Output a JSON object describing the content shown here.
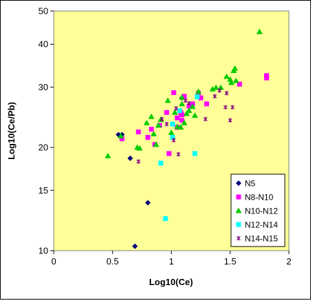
{
  "chart_data": {
    "type": "scatter",
    "xlabel": "Log10(Ce)",
    "ylabel": "Log10(Ce/Pb)",
    "xlim": [
      0,
      2
    ],
    "ylim": [
      10,
      50
    ],
    "yscale": "log",
    "x_ticks": [
      "0",
      "0.5",
      "1",
      "1.5",
      "2"
    ],
    "y_ticks": [
      {
        "value": 10,
        "label": "10"
      },
      {
        "value": 15,
        "label": "15"
      },
      {
        "value": 20,
        "label": "20"
      },
      {
        "value": 30,
        "label": "30"
      },
      {
        "value": 40,
        "label": "40"
      },
      {
        "value": 50,
        "label": "50"
      }
    ],
    "grid": false,
    "legend_position": "bottom-right",
    "plot_background": "#FFFF99",
    "series": [
      {
        "name": "N5",
        "marker": "diamond",
        "color": "#000080",
        "points": [
          [
            0.55,
            21.8
          ],
          [
            0.58,
            21.8
          ],
          [
            0.65,
            18.6
          ],
          [
            0.69,
            10.3
          ],
          [
            0.8,
            13.8
          ],
          [
            1.09,
            27.9
          ]
        ]
      },
      {
        "name": "N8-N10",
        "marker": "square",
        "color": "#FF00FF",
        "points": [
          [
            0.58,
            21.2
          ],
          [
            0.72,
            22.2
          ],
          [
            0.8,
            21.4
          ],
          [
            0.83,
            22.6
          ],
          [
            0.86,
            20.4
          ],
          [
            0.9,
            23.2
          ],
          [
            0.96,
            25.3
          ],
          [
            0.98,
            19.2
          ],
          [
            1.02,
            28.9
          ],
          [
            1.05,
            22.9
          ],
          [
            1.05,
            24.4
          ],
          [
            1.08,
            25.3
          ],
          [
            1.09,
            24.9
          ],
          [
            1.09,
            24.0
          ],
          [
            1.11,
            28.2
          ],
          [
            1.15,
            26.4
          ],
          [
            1.18,
            26.8
          ],
          [
            1.23,
            28.8
          ],
          [
            1.25,
            27.9
          ],
          [
            1.3,
            26.8
          ],
          [
            1.58,
            30.6
          ],
          [
            1.81,
            31.9
          ],
          [
            1.81,
            32.4
          ]
        ]
      },
      {
        "name": "N10-N12",
        "marker": "triangle",
        "color": "#00CC00",
        "points": [
          [
            0.46,
            18.9
          ],
          [
            0.57,
            21.6
          ],
          [
            0.71,
            20.0
          ],
          [
            0.73,
            19.9
          ],
          [
            0.79,
            23.6
          ],
          [
            0.83,
            24.6
          ],
          [
            0.85,
            21.9
          ],
          [
            0.87,
            20.4
          ],
          [
            0.89,
            23.2
          ],
          [
            0.91,
            24.1
          ],
          [
            0.97,
            27.4
          ],
          [
            1.0,
            22.1
          ],
          [
            1.03,
            25.3
          ],
          [
            1.05,
            23.0
          ],
          [
            1.08,
            22.9
          ],
          [
            1.09,
            26.8
          ],
          [
            1.09,
            28.0
          ],
          [
            1.11,
            23.6
          ],
          [
            1.13,
            25.1
          ],
          [
            1.15,
            25.6
          ],
          [
            1.18,
            26.3
          ],
          [
            1.2,
            24.8
          ],
          [
            1.23,
            29.1
          ],
          [
            1.35,
            29.6
          ],
          [
            1.38,
            29.9
          ],
          [
            1.42,
            29.9
          ],
          [
            1.47,
            32.2
          ],
          [
            1.5,
            31.6
          ],
          [
            1.51,
            30.9
          ],
          [
            1.53,
            33.5
          ],
          [
            1.54,
            34.0
          ],
          [
            1.55,
            31.3
          ],
          [
            1.75,
            43.5
          ]
        ]
      },
      {
        "name": "N12-N14",
        "marker": "square",
        "color": "#00FFFF",
        "points": [
          [
            0.91,
            18.0
          ],
          [
            0.95,
            12.4
          ],
          [
            1.01,
            23.4
          ],
          [
            1.01,
            21.4
          ],
          [
            1.07,
            25.6
          ],
          [
            1.2,
            19.2
          ],
          [
            1.22,
            28.1
          ]
        ]
      },
      {
        "name": "N14-N15",
        "marker": "star",
        "color": "#800080",
        "points": [
          [
            0.72,
            18.2
          ],
          [
            0.92,
            24.2
          ],
          [
            0.96,
            23.4
          ],
          [
            1.02,
            21.0
          ],
          [
            1.04,
            26.0
          ],
          [
            1.06,
            19.1
          ],
          [
            1.12,
            27.4
          ],
          [
            1.15,
            26.9
          ],
          [
            1.29,
            24.2
          ],
          [
            1.37,
            28.2
          ],
          [
            1.41,
            29.3
          ],
          [
            1.46,
            26.2
          ],
          [
            1.47,
            28.8
          ],
          [
            1.5,
            24.0
          ],
          [
            1.52,
            26.2
          ]
        ]
      }
    ]
  }
}
